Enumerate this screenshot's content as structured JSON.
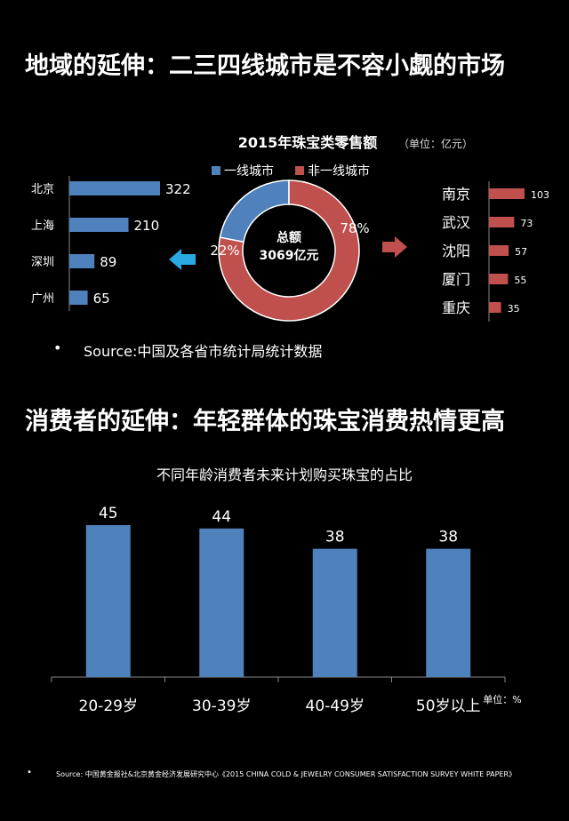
{
  "section1": {
    "title": "地域的延伸：二三四线城市是不容小觑的市场",
    "source": "Source:中国及各省市统计局统计数据"
  },
  "section2": {
    "title": "消费者的延伸：年轻群体的珠宝消费热情更高",
    "source": "Source: 中国黄金报社&北京黄金经济发展研究中心《2015 CHINA COLD & JEWELRY CONSUMER SATISFACTION SURVEY WHITE PAPER》"
  },
  "bullet": "•",
  "colors": {
    "blue": "#4F81BD",
    "red": "#C0504D",
    "cyan": "#2AA8E0",
    "axis": "#888888"
  },
  "chart_data": [
    {
      "type": "pie",
      "title": "2015年珠宝类零售额",
      "unit_note": "（单位：亿元）",
      "center_label": [
        "总额",
        "3069亿元"
      ],
      "legend": [
        "一线城市",
        "非一线城市"
      ],
      "slices": [
        {
          "name": "一线城市",
          "value": 22,
          "label": "22%"
        },
        {
          "name": "非一线城市",
          "value": 78,
          "label": "78%"
        }
      ]
    },
    {
      "type": "bar",
      "orientation": "horizontal",
      "categories": [
        "北京",
        "上海",
        "深圳",
        "广州"
      ],
      "values": [
        322,
        210,
        89,
        65
      ]
    },
    {
      "type": "bar",
      "orientation": "horizontal",
      "categories": [
        "南京",
        "武汉",
        "沈阳",
        "厦门",
        "重庆"
      ],
      "values": [
        103,
        73,
        57,
        55,
        35
      ]
    },
    {
      "type": "bar",
      "title": "不同年龄消费者未来计划购买珠宝的占比",
      "unit_note": "单位：%",
      "categories": [
        "20-29岁",
        "30-39岁",
        "40-49岁",
        "50岁以上"
      ],
      "values": [
        45,
        44,
        38,
        38
      ],
      "ylim": [
        0,
        50
      ]
    }
  ]
}
